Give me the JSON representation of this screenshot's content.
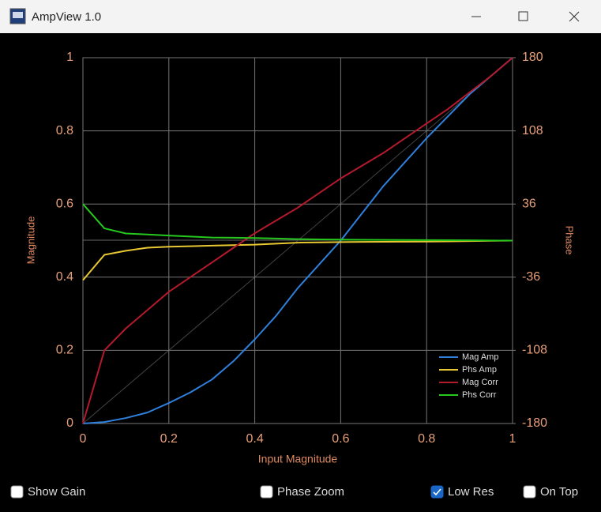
{
  "window": {
    "title": "AmpView 1.0"
  },
  "chart_data": {
    "type": "line",
    "x_label": "Input Magnitude",
    "y_label": "Magnitude",
    "y2_label": "Phase",
    "x": [
      0,
      0.05,
      0.1,
      0.15,
      0.2,
      0.25,
      0.3,
      0.35,
      0.4,
      0.45,
      0.5,
      0.55,
      0.6,
      0.65,
      0.7,
      0.75,
      0.8,
      0.85,
      0.9,
      0.95,
      1
    ],
    "series": [
      {
        "name": "Mag Amp",
        "color": "#2f80dc",
        "values": [
          0,
          0.004,
          0.015,
          0.03,
          0.056,
          0.085,
          0.12,
          0.17,
          0.23,
          0.295,
          0.37,
          0.435,
          0.5,
          0.575,
          0.65,
          0.715,
          0.78,
          0.84,
          0.9,
          0.95,
          1
        ]
      },
      {
        "name": "Phs Amp",
        "color": "#e8c832",
        "axis": "y2",
        "values": [
          -39,
          -14,
          -10,
          -7,
          -6,
          -5.5,
          -5,
          -4.5,
          -4,
          -3,
          -2,
          -1.8,
          -1.5,
          -1.3,
          -1.2,
          -1.1,
          -1,
          -0.8,
          -0.5,
          -0.2,
          0
        ]
      },
      {
        "name": "Mag Corr",
        "color": "#b41a2c",
        "values": [
          0,
          0.2,
          0.26,
          0.31,
          0.36,
          0.4,
          0.44,
          0.48,
          0.52,
          0.555,
          0.59,
          0.63,
          0.67,
          0.705,
          0.74,
          0.78,
          0.82,
          0.86,
          0.905,
          0.95,
          1
        ]
      },
      {
        "name": "Phs Corr",
        "color": "#26c81e",
        "axis": "y2",
        "values": [
          36,
          12,
          7,
          6,
          5,
          4,
          3,
          2.8,
          2.5,
          2,
          1.5,
          1.2,
          1,
          0.8,
          0.7,
          0.6,
          0.5,
          0.4,
          0.3,
          0.1,
          0
        ]
      }
    ],
    "xlim": [
      0,
      1
    ],
    "xticks": [
      0,
      0.2,
      0.4,
      0.6,
      0.8,
      1
    ],
    "ylim": [
      0,
      1
    ],
    "yticks": [
      0,
      0.2,
      0.4,
      0.6,
      0.8,
      1
    ],
    "y2lim": [
      -180,
      180
    ],
    "y2ticks": [
      -180,
      -108,
      -36,
      36,
      108,
      180
    ],
    "grid": true,
    "legend": "lower right"
  },
  "controls": [
    {
      "label": "Show Gain",
      "checked": false
    },
    {
      "label": "Phase Zoom",
      "checked": false
    },
    {
      "label": "Low Res",
      "checked": true
    },
    {
      "label": "On Top",
      "checked": false
    }
  ]
}
